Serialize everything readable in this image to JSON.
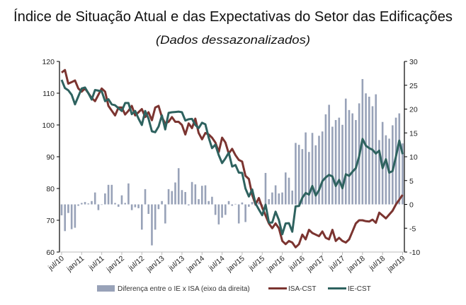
{
  "chart_data": {
    "type": "bar+line",
    "title": "Índice de Situação Atual e das Expectativas do Setor das Edificações",
    "subtitle": "(Dados dessazonalizados)",
    "xlabel": "",
    "ylabel": "",
    "x_tick_labels": [
      "jul/10",
      "jan/11",
      "jul/11",
      "jan/12",
      "jul/12",
      "jan/13",
      "jul/13",
      "jan/14",
      "jul/14",
      "jan/15",
      "jul/15",
      "jan/16",
      "jul/16",
      "jan/17",
      "jul/17",
      "jan/18",
      "jul/18",
      "jan/19"
    ],
    "x_range": [
      "jul/10",
      "jan/19"
    ],
    "x_frequency": "monthly",
    "ylim_left": [
      60,
      120
    ],
    "yticks_left": [
      60,
      70,
      80,
      90,
      100,
      110,
      120
    ],
    "ylim_right": [
      -10,
      30
    ],
    "yticks_right": [
      -10,
      -5,
      0,
      5,
      10,
      15,
      20,
      25,
      30
    ],
    "grid": false,
    "legend_position": "bottom",
    "series": [
      {
        "name": "Diferença entre o IE x ISA (eixo da direita)",
        "type": "bar",
        "axis": "right",
        "color": "#98a2b8",
        "values": [
          -2.3,
          -5.6,
          -1.8,
          -5.2,
          -4.9,
          -0.3,
          0.3,
          0.5,
          0.2,
          0.7,
          2.5,
          -1.2,
          -0.1,
          2.3,
          4.1,
          4.1,
          0.3,
          -0.5,
          1.9,
          0.3,
          4.4,
          -1.2,
          -0.6,
          -0.8,
          -5.3,
          3.2,
          -2.0,
          -8.6,
          -5.3,
          -1.0,
          0.7,
          -4.0,
          3.2,
          2.8,
          4.6,
          7.6,
          3.0,
          2.6,
          -0.2,
          4.7,
          4.2,
          1.1,
          3.9,
          4.0,
          0.7,
          1.6,
          -2.2,
          -4.2,
          -2.8,
          -2.2,
          0.7,
          -0.3,
          0.1,
          -4.0,
          0.4,
          -3.7,
          -0.5,
          0.5,
          -0.3,
          0.5,
          -0.5,
          6.6,
          1.1,
          2.5,
          4.0,
          2.3,
          2.5,
          6.7,
          5.6,
          2.9,
          12.9,
          12.5,
          11.6,
          15.1,
          11.0,
          15.0,
          12.4,
          14.4,
          15.3,
          18.9,
          20.9,
          16.3,
          17.7,
          18.2,
          16.7,
          22.2,
          19.8,
          19.1,
          17.7,
          21.2,
          26.3,
          23.3,
          22.6,
          20.6,
          23.1,
          13.5,
          17.3,
          14.5,
          13.8,
          16.6,
          18.2,
          19.1,
          12.8
        ]
      },
      {
        "name": "ISA-CST",
        "type": "line",
        "axis": "left",
        "color": "#7b3430",
        "values": [
          116.5,
          117.3,
          113,
          113.5,
          114,
          111.5,
          110.5,
          111.5,
          110,
          108.5,
          107.5,
          109.5,
          111.5,
          110.5,
          106,
          104.5,
          103,
          105.5,
          105.5,
          103.3,
          104.5,
          106,
          103,
          104,
          105,
          102.5,
          104,
          101.5,
          105.5,
          106,
          102.5,
          100.5,
          101,
          102.5,
          101,
          101,
          100,
          97,
          100.5,
          99,
          102,
          97.5,
          95.5,
          97.5,
          97,
          96,
          94.5,
          91.5,
          96,
          94.5,
          91,
          92.5,
          90.5,
          89,
          88.5,
          84,
          83,
          78,
          75,
          77,
          74,
          71.5,
          69,
          67.5,
          69,
          67.5,
          63.5,
          62.5,
          63.5,
          63,
          61.5,
          62.5,
          65.5,
          64,
          67,
          66,
          65.5,
          65,
          66.5,
          64.5,
          64,
          67,
          63.5,
          64.5,
          63.5,
          63,
          64,
          66.5,
          69,
          70,
          70,
          69.7,
          69.6,
          70.2,
          69.2,
          72.4,
          71.5,
          70.6,
          71.8,
          73,
          75,
          76.5,
          78
        ]
      },
      {
        "name": "IE-CST",
        "type": "line",
        "axis": "left",
        "color": "#2e625f",
        "values": [
          114.2,
          111.6,
          110.9,
          109.5,
          106.5,
          109,
          111.5,
          111.8,
          110,
          108,
          111,
          110.8,
          110.6,
          107.5,
          108.1,
          106.5,
          106.2,
          105.3,
          104.4,
          106.9,
          106.9,
          103.4,
          104.4,
          102,
          100,
          104.4,
          102,
          98,
          97.7,
          99.5,
          103,
          98.6,
          103.8,
          104,
          104.1,
          104.2,
          104,
          101.4,
          101.8,
          101.9,
          100,
          99,
          100.7,
          100.2,
          96,
          92.7,
          93.8,
          90.5,
          88,
          89.5,
          91.3,
          86.9,
          87.4,
          85,
          84.9,
          80,
          77.5,
          79.7,
          75.3,
          73.4,
          71.6,
          74.9,
          69.3,
          69.3,
          72.7,
          70.1,
          65.6,
          69,
          69.1,
          66.4,
          74.4,
          74.5,
          77.1,
          78.6,
          78.1,
          80.8,
          77.8,
          79.5,
          82.3,
          83.5,
          84.3,
          83.8,
          80.8,
          82.7,
          80.1,
          84.5,
          84,
          85.3,
          86.4,
          90.1,
          95.6,
          93.5,
          92.7,
          92.2,
          91,
          91.9,
          86.4,
          89.2,
          85,
          85.5,
          90.1,
          95.1,
          90.8
        ]
      }
    ]
  }
}
